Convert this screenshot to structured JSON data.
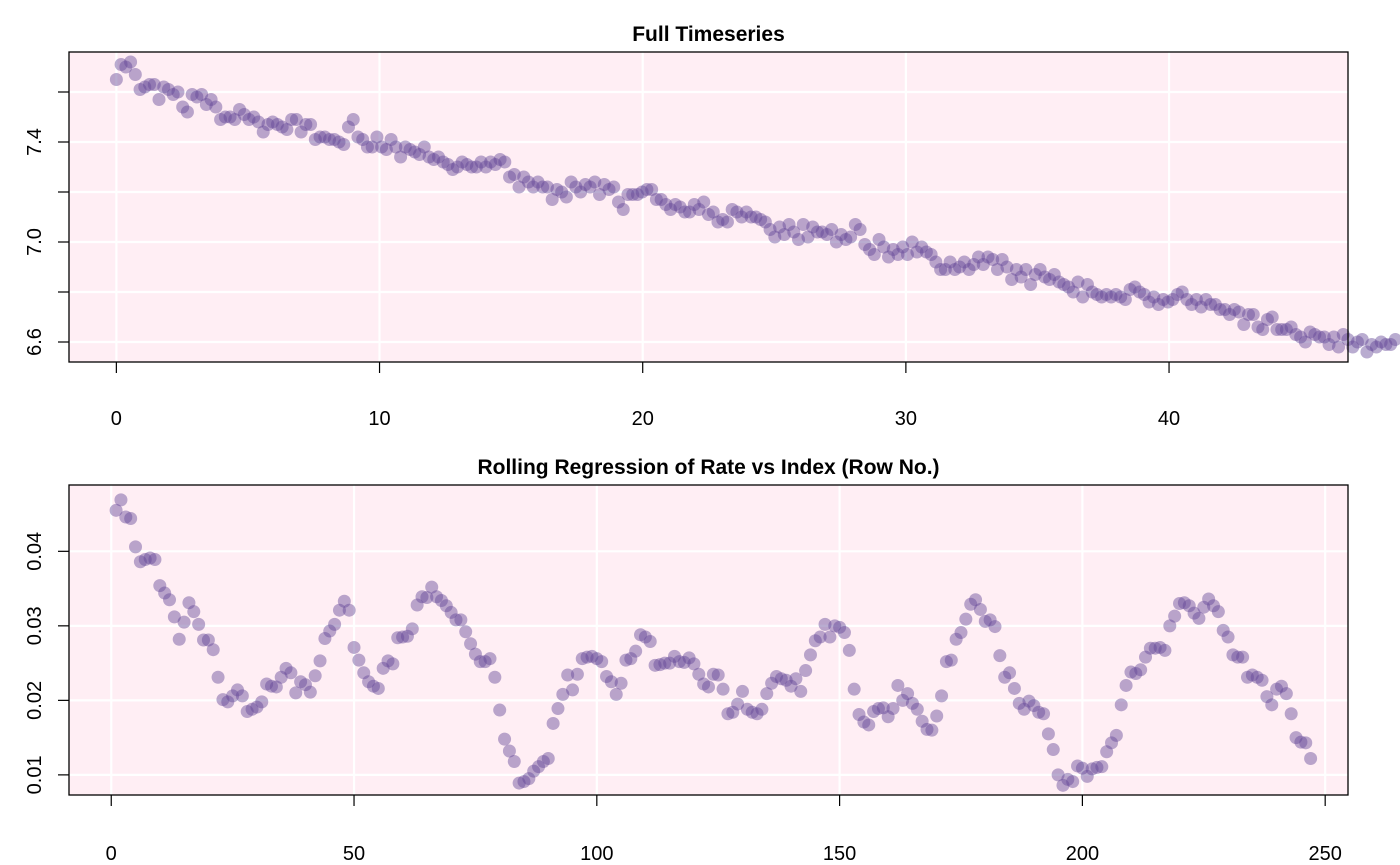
{
  "colors": {
    "panel_background": "#FFEEF4",
    "grid": "#FFFFFF",
    "points": "#5B3F8C"
  },
  "chart_data": [
    {
      "type": "scatter",
      "title": "Full Timeseries",
      "xlabel": "",
      "ylabel": "",
      "xlim": [
        -1.8,
        46.8
      ],
      "ylim": [
        6.52,
        7.76
      ],
      "xticks": [
        0,
        10,
        20,
        30,
        40
      ],
      "yticks": [
        6.6,
        6.8,
        7.0,
        7.2,
        7.4,
        7.6
      ],
      "xtick_labels": [
        "0",
        "10",
        "20",
        "30",
        "40"
      ],
      "ytick_labels": [
        "6.6",
        "",
        "7.0",
        "",
        "7.4",
        ""
      ],
      "grid": true,
      "start": 0,
      "step": 0.18,
      "y": [
        7.65,
        7.71,
        7.7,
        7.72,
        7.67,
        7.61,
        7.62,
        7.63,
        7.63,
        7.57,
        7.62,
        7.61,
        7.59,
        7.6,
        7.54,
        7.52,
        7.59,
        7.58,
        7.59,
        7.55,
        7.57,
        7.54,
        7.49,
        7.5,
        7.5,
        7.49,
        7.53,
        7.51,
        7.49,
        7.5,
        7.48,
        7.44,
        7.47,
        7.48,
        7.47,
        7.46,
        7.45,
        7.49,
        7.49,
        7.44,
        7.47,
        7.47,
        7.41,
        7.42,
        7.42,
        7.41,
        7.41,
        7.4,
        7.39,
        7.46,
        7.49,
        7.42,
        7.41,
        7.38,
        7.38,
        7.42,
        7.38,
        7.37,
        7.41,
        7.38,
        7.34,
        7.38,
        7.37,
        7.36,
        7.35,
        7.38,
        7.34,
        7.33,
        7.34,
        7.32,
        7.31,
        7.29,
        7.3,
        7.32,
        7.31,
        7.3,
        7.3,
        7.32,
        7.3,
        7.32,
        7.31,
        7.33,
        7.32,
        7.26,
        7.27,
        7.22,
        7.26,
        7.24,
        7.22,
        7.24,
        7.22,
        7.22,
        7.17,
        7.21,
        7.2,
        7.18,
        7.24,
        7.22,
        7.2,
        7.23,
        7.22,
        7.24,
        7.19,
        7.23,
        7.21,
        7.22,
        7.16,
        7.13,
        7.19,
        7.19,
        7.19,
        7.2,
        7.21,
        7.21,
        7.17,
        7.17,
        7.15,
        7.13,
        7.15,
        7.14,
        7.12,
        7.12,
        7.15,
        7.13,
        7.16,
        7.11,
        7.12,
        7.08,
        7.09,
        7.08,
        7.13,
        7.12,
        7.1,
        7.12,
        7.1,
        7.1,
        7.09,
        7.08,
        7.05,
        7.02,
        7.06,
        7.03,
        7.07,
        7.04,
        7.01,
        7.07,
        7.02,
        7.06,
        7.04,
        7.04,
        7.03,
        7.05,
        7.0,
        7.03,
        7.01,
        7.02,
        7.07,
        7.05,
        6.99,
        6.97,
        6.95,
        7.01,
        6.98,
        6.94,
        6.97,
        6.95,
        6.98,
        6.95,
        7.0,
        6.96,
        6.98,
        6.96,
        6.95,
        6.92,
        6.89,
        6.89,
        6.92,
        6.89,
        6.9,
        6.92,
        6.89,
        6.91,
        6.94,
        6.91,
        6.94,
        6.93,
        6.89,
        6.93,
        6.9,
        6.85,
        6.89,
        6.86,
        6.89,
        6.83,
        6.87,
        6.89,
        6.86,
        6.85,
        6.87,
        6.84,
        6.83,
        6.82,
        6.8,
        6.84,
        6.78,
        6.83,
        6.8,
        6.79,
        6.78,
        6.79,
        6.78,
        6.79,
        6.78,
        6.77,
        6.81,
        6.82,
        6.8,
        6.79,
        6.76,
        6.78,
        6.75,
        6.77,
        6.76,
        6.77,
        6.79,
        6.8,
        6.77,
        6.75,
        6.77,
        6.74,
        6.77,
        6.75,
        6.75,
        6.73,
        6.73,
        6.71,
        6.73,
        6.72,
        6.67,
        6.71,
        6.71,
        6.66,
        6.65,
        6.69,
        6.7,
        6.65,
        6.65,
        6.65,
        6.66,
        6.63,
        6.62,
        6.6,
        6.64,
        6.63,
        6.62,
        6.62,
        6.59,
        6.62,
        6.58,
        6.63,
        6.61,
        6.58,
        6.6,
        6.61,
        6.56,
        6.59,
        6.58,
        6.6,
        6.59,
        6.59,
        6.61
      ]
    },
    {
      "type": "scatter",
      "title": "Rolling Regression of Rate vs Index (Row No.)",
      "xlabel": "",
      "ylabel": "",
      "xlim": [
        -8.7,
        254.7
      ],
      "ylim": [
        0.0073,
        0.0489
      ],
      "xticks": [
        0,
        50,
        100,
        150,
        200,
        250
      ],
      "yticks": [
        0.01,
        0.02,
        0.03,
        0.04
      ],
      "xtick_labels": [
        "0",
        "50",
        "100",
        "150",
        "200",
        "250"
      ],
      "ytick_labels": [
        "0.01",
        "0.02",
        "0.03",
        "0.04"
      ],
      "grid": true,
      "start": 1,
      "step": 1,
      "y": [
        0.0455,
        0.0469,
        0.0446,
        0.0444,
        0.0406,
        0.0386,
        0.0389,
        0.0391,
        0.0389,
        0.0354,
        0.0344,
        0.0335,
        0.0312,
        0.0282,
        0.0305,
        0.0331,
        0.0319,
        0.0302,
        0.0281,
        0.0281,
        0.0268,
        0.0231,
        0.0201,
        0.0198,
        0.0206,
        0.0214,
        0.0206,
        0.0185,
        0.0188,
        0.0191,
        0.0198,
        0.0222,
        0.0219,
        0.0218,
        0.0231,
        0.0243,
        0.0237,
        0.021,
        0.0225,
        0.0221,
        0.0211,
        0.0233,
        0.0253,
        0.0283,
        0.0293,
        0.0302,
        0.0321,
        0.0333,
        0.0321,
        0.0271,
        0.0254,
        0.0237,
        0.0225,
        0.0219,
        0.0216,
        0.0243,
        0.0253,
        0.0249,
        0.0284,
        0.0285,
        0.0286,
        0.0296,
        0.0328,
        0.0339,
        0.0338,
        0.0352,
        0.0339,
        0.0334,
        0.0327,
        0.0318,
        0.0308,
        0.0308,
        0.0292,
        0.0276,
        0.0262,
        0.0252,
        0.0252,
        0.0256,
        0.0231,
        0.0187,
        0.0148,
        0.0132,
        0.0118,
        0.0089,
        0.0091,
        0.0095,
        0.0105,
        0.0111,
        0.0118,
        0.0122,
        0.0169,
        0.0189,
        0.0208,
        0.0234,
        0.0214,
        0.0235,
        0.0256,
        0.0258,
        0.0259,
        0.0256,
        0.0252,
        0.0232,
        0.0225,
        0.0208,
        0.0223,
        0.0254,
        0.0256,
        0.0266,
        0.0288,
        0.0285,
        0.0279,
        0.0247,
        0.0248,
        0.025,
        0.025,
        0.0259,
        0.0252,
        0.0251,
        0.0257,
        0.0249,
        0.0235,
        0.0222,
        0.0218,
        0.0235,
        0.0234,
        0.0215,
        0.0182,
        0.0184,
        0.0195,
        0.0212,
        0.0188,
        0.0184,
        0.0182,
        0.0188,
        0.0209,
        0.0223,
        0.0232,
        0.0229,
        0.0227,
        0.0219,
        0.0229,
        0.0212,
        0.024,
        0.0261,
        0.028,
        0.0285,
        0.0302,
        0.0285,
        0.03,
        0.0298,
        0.0291,
        0.0267,
        0.0215,
        0.0181,
        0.0171,
        0.0167,
        0.0185,
        0.0189,
        0.019,
        0.0178,
        0.0189,
        0.022,
        0.02,
        0.0209,
        0.0196,
        0.0188,
        0.0172,
        0.0161,
        0.016,
        0.0179,
        0.0206,
        0.0252,
        0.0254,
        0.0282,
        0.0291,
        0.0309,
        0.0329,
        0.0335,
        0.0322,
        0.0306,
        0.0308,
        0.0299,
        0.026,
        0.0231,
        0.0237,
        0.0216,
        0.0196,
        0.0188,
        0.0199,
        0.0193,
        0.0184,
        0.0182,
        0.0155,
        0.0134,
        0.01,
        0.0086,
        0.0094,
        0.0091,
        0.0112,
        0.0109,
        0.0098,
        0.0108,
        0.011,
        0.0111,
        0.0131,
        0.0143,
        0.0153,
        0.0194,
        0.022,
        0.0238,
        0.0236,
        0.0241,
        0.0258,
        0.027,
        0.027,
        0.0271,
        0.0267,
        0.03,
        0.0313,
        0.033,
        0.0331,
        0.0327,
        0.0317,
        0.031,
        0.0325,
        0.0336,
        0.0327,
        0.0319,
        0.0294,
        0.0285,
        0.0261,
        0.0258,
        0.0258,
        0.0231,
        0.0234,
        0.0231,
        0.0227,
        0.0205,
        0.0194,
        0.0215,
        0.0219,
        0.0209,
        0.0182,
        0.015,
        0.0144,
        0.0143,
        0.0122
      ]
    }
  ]
}
